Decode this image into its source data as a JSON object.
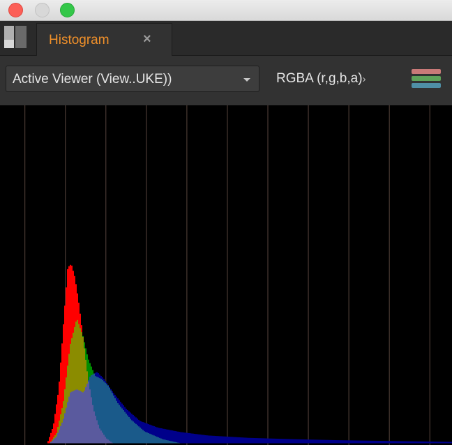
{
  "window": {
    "traffic_lights": [
      "close",
      "minimize",
      "maximize"
    ]
  },
  "tabs": [
    {
      "label": "Histogram",
      "close_glyph": "×",
      "active": true
    }
  ],
  "controls": {
    "viewer_select": {
      "value": "Active Viewer (View..UKE))"
    },
    "channel_select": {
      "value": "RGBA (r,g,b,a)",
      "arrow": "›"
    },
    "channel_icon": {
      "icon": "channel-stripes-icon",
      "colors": [
        "#c97a78",
        "#5fa35a",
        "#4f8fa6"
      ]
    }
  },
  "colors": {
    "tab_accent": "#f0902a",
    "grid_line": "#4a3a34",
    "red": "#ff0000",
    "green": "#008c00",
    "blue": "#00008a",
    "rg_overlap": "#8b8c00",
    "rb_overlap": "#8a00a0",
    "gb_overlap": "#1a5a8a",
    "rgb_overlap": "#5a5a9e"
  },
  "chart_data": {
    "type": "area",
    "grid_lines": 11,
    "xlim": [
      0,
      1
    ],
    "ylim": [
      0,
      1
    ],
    "series": [
      {
        "channel": "red",
        "x": [
          0.105,
          0.118,
          0.13,
          0.142,
          0.15,
          0.158,
          0.166,
          0.175,
          0.185,
          0.195,
          0.207,
          0.22,
          0.235,
          0.25
        ],
        "y": [
          0.0,
          0.05,
          0.16,
          0.38,
          0.52,
          0.53,
          0.49,
          0.41,
          0.3,
          0.19,
          0.1,
          0.045,
          0.015,
          0.0
        ]
      },
      {
        "channel": "green",
        "x": [
          0.11,
          0.125,
          0.14,
          0.155,
          0.17,
          0.183,
          0.195,
          0.21,
          0.225,
          0.24,
          0.26,
          0.29,
          0.32,
          0.36,
          0.4
        ],
        "y": [
          0.0,
          0.03,
          0.12,
          0.29,
          0.37,
          0.32,
          0.25,
          0.2,
          0.19,
          0.17,
          0.12,
          0.07,
          0.035,
          0.012,
          0.0
        ]
      },
      {
        "channel": "blue",
        "x": [
          0.11,
          0.125,
          0.14,
          0.155,
          0.17,
          0.185,
          0.2,
          0.215,
          0.23,
          0.25,
          0.28,
          0.31,
          0.35,
          0.4,
          0.46,
          0.55,
          0.65,
          0.75,
          0.85,
          0.95,
          1.0
        ],
        "y": [
          0.0,
          0.02,
          0.07,
          0.15,
          0.16,
          0.15,
          0.2,
          0.21,
          0.19,
          0.15,
          0.1,
          0.065,
          0.045,
          0.032,
          0.022,
          0.015,
          0.011,
          0.008,
          0.006,
          0.004,
          0.003
        ]
      }
    ]
  }
}
